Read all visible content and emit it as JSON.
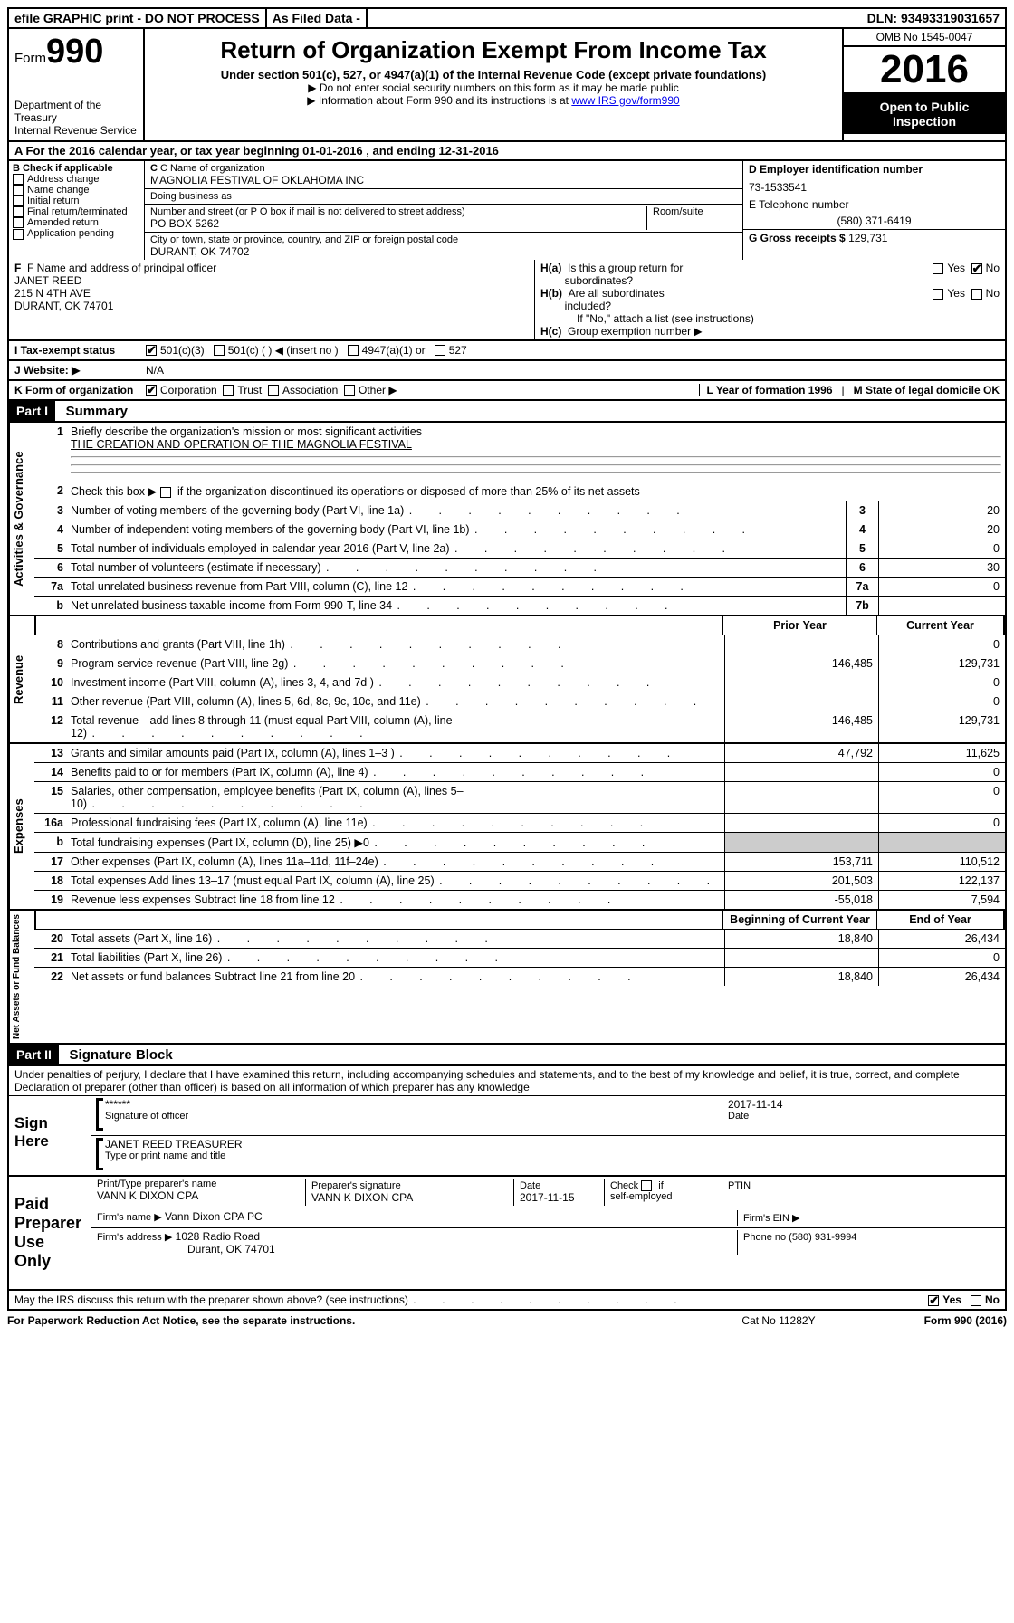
{
  "topbar": {
    "efile": "efile GRAPHIC print - DO NOT PROCESS",
    "asfiled": "As Filed Data -",
    "dln_label": "DLN:",
    "dln": "93493319031657"
  },
  "header": {
    "form_word": "Form",
    "form_num": "990",
    "dept1": "Department of the Treasury",
    "dept2": "Internal Revenue Service",
    "title": "Return of Organization Exempt From Income Tax",
    "subtitle": "Under section 501(c), 527, or 4947(a)(1) of the Internal Revenue Code (except private foundations)",
    "arrow1": "▶ Do not enter social security numbers on this form as it may be made public",
    "arrow2_pre": "▶ Information about Form 990 and its instructions is at ",
    "arrow2_link": "www IRS gov/form990",
    "omb": "OMB No 1545-0047",
    "year": "2016",
    "open1": "Open to Public",
    "open2": "Inspection"
  },
  "rowA": "A   For the 2016 calendar year, or tax year beginning 01-01-2016   , and ending 12-31-2016",
  "colB": {
    "title": "B Check if applicable",
    "items": [
      "Address change",
      "Name change",
      "Initial return",
      "Final return/terminated",
      "Amended return",
      "Application pending"
    ]
  },
  "colC": {
    "name_lbl": "C Name of organization",
    "name": "MAGNOLIA FESTIVAL OF OKLAHOMA INC",
    "dba_lbl": "Doing business as",
    "dba": "",
    "street_lbl": "Number and street (or P O  box if mail is not delivered to street address)",
    "room_lbl": "Room/suite",
    "street": "PO BOX 5262",
    "city_lbl": "City or town, state or province, country, and ZIP or foreign postal code",
    "city": "DURANT, OK  74702"
  },
  "colRight": {
    "d_lbl": "D Employer identification number",
    "d_val": "73-1533541",
    "e_lbl": "E Telephone number",
    "e_val": "(580) 371-6419",
    "g_lbl": "G Gross receipts $",
    "g_val": "129,731"
  },
  "boxF": {
    "lbl": "F  Name and address of principal officer",
    "l1": "JANET REED",
    "l2": "215 N 4TH AVE",
    "l3": "DURANT, OK  74701",
    "ha_lbl": "H(a)  Is this a group return for subordinates?",
    "hb_lbl": "H(b)  Are all subordinates included?",
    "h_note": "If \"No,\" attach a list  (see instructions)",
    "hc_lbl": "H(c)  Group exemption number ▶",
    "yes": "Yes",
    "no": "No"
  },
  "rowI": {
    "lbl": "I   Tax-exempt status",
    "o1": "501(c)(3)",
    "o2": "501(c) (   ) ◀ (insert no )",
    "o3": "4947(a)(1) or",
    "o4": "527"
  },
  "rowJ": {
    "lbl": "J   Website: ▶",
    "val": "N/A"
  },
  "rowK": {
    "lbl": "K Form of organization",
    "o1": "Corporation",
    "o2": "Trust",
    "o3": "Association",
    "o4": "Other ▶",
    "l_lbl": "L Year of formation  1996",
    "m_lbl": "M State of legal domicile  OK"
  },
  "part1": {
    "hdr": "Part I",
    "title": "Summary",
    "q1_lbl": "1",
    "q1": "Briefly describe the organization's mission or most significant activities",
    "q1_val": "THE CREATION AND OPERATION OF THE MAGNOLIA FESTIVAL",
    "q2": "Check this box ▶       if the organization discontinued its operations or disposed of more than 25% of its net assets",
    "vlabels": {
      "gov": "Activities & Governance",
      "rev": "Revenue",
      "exp": "Expenses",
      "net": "Net Assets or Fund Balances"
    },
    "gov_rows": [
      {
        "n": "3",
        "d": "Number of voting members of the governing body (Part VI, line 1a)",
        "b": "3",
        "v": "20"
      },
      {
        "n": "4",
        "d": "Number of independent voting members of the governing body (Part VI, line 1b)",
        "b": "4",
        "v": "20"
      },
      {
        "n": "5",
        "d": "Total number of individuals employed in calendar year 2016 (Part V, line 2a)",
        "b": "5",
        "v": "0"
      },
      {
        "n": "6",
        "d": "Total number of volunteers (estimate if necessary)",
        "b": "6",
        "v": "30"
      },
      {
        "n": "7a",
        "d": "Total unrelated business revenue from Part VIII, column (C), line 12",
        "b": "7a",
        "v": "0"
      },
      {
        "n": "b",
        "d": "Net unrelated business taxable income from Form 990-T, line 34",
        "b": "7b",
        "v": ""
      }
    ],
    "col_hdrs": {
      "prior": "Prior Year",
      "curr": "Current Year",
      "beg": "Beginning of Current Year",
      "end": "End of Year"
    },
    "rev_rows": [
      {
        "n": "8",
        "d": "Contributions and grants (Part VIII, line 1h)",
        "p": "",
        "c": "0"
      },
      {
        "n": "9",
        "d": "Program service revenue (Part VIII, line 2g)",
        "p": "146,485",
        "c": "129,731"
      },
      {
        "n": "10",
        "d": "Investment income (Part VIII, column (A), lines 3, 4, and 7d )",
        "p": "",
        "c": "0"
      },
      {
        "n": "11",
        "d": "Other revenue (Part VIII, column (A), lines 5, 6d, 8c, 9c, 10c, and 11e)",
        "p": "",
        "c": "0"
      },
      {
        "n": "12",
        "d": "Total revenue—add lines 8 through 11 (must equal Part VIII, column (A), line 12)",
        "p": "146,485",
        "c": "129,731"
      }
    ],
    "exp_rows": [
      {
        "n": "13",
        "d": "Grants and similar amounts paid (Part IX, column (A), lines 1–3 )",
        "p": "47,792",
        "c": "11,625"
      },
      {
        "n": "14",
        "d": "Benefits paid to or for members (Part IX, column (A), line 4)",
        "p": "",
        "c": "0"
      },
      {
        "n": "15",
        "d": "Salaries, other compensation, employee benefits (Part IX, column (A), lines 5–10)",
        "p": "",
        "c": "0"
      },
      {
        "n": "16a",
        "d": "Professional fundraising fees (Part IX, column (A), line 11e)",
        "p": "",
        "c": "0"
      },
      {
        "n": "b",
        "d": "Total fundraising expenses (Part IX, column (D), line 25) ▶0",
        "p": "shade",
        "c": "shade"
      },
      {
        "n": "17",
        "d": "Other expenses (Part IX, column (A), lines 11a–11d, 11f–24e)",
        "p": "153,711",
        "c": "110,512"
      },
      {
        "n": "18",
        "d": "Total expenses  Add lines 13–17 (must equal Part IX, column (A), line 25)",
        "p": "201,503",
        "c": "122,137"
      },
      {
        "n": "19",
        "d": "Revenue less expenses  Subtract line 18 from line 12",
        "p": "-55,018",
        "c": "7,594"
      }
    ],
    "net_rows": [
      {
        "n": "20",
        "d": "Total assets (Part X, line 16)",
        "p": "18,840",
        "c": "26,434"
      },
      {
        "n": "21",
        "d": "Total liabilities (Part X, line 26)",
        "p": "",
        "c": "0"
      },
      {
        "n": "22",
        "d": "Net assets or fund balances  Subtract line 21 from line 20",
        "p": "18,840",
        "c": "26,434"
      }
    ]
  },
  "part2": {
    "hdr": "Part II",
    "title": "Signature Block",
    "perjury": "Under penalties of perjury, I declare that I have examined this return, including accompanying schedules and statements, and to the best of my knowledge and belief, it is true, correct, and complete  Declaration of preparer (other than officer) is based on all information of which preparer has any knowledge",
    "sign_here": "Sign Here",
    "stars": "******",
    "sig_lbl": "Signature of officer",
    "date_lbl": "Date",
    "date_val": "2017-11-14",
    "name_val": "JANET REED  TREASURER",
    "name_lbl": "Type or print name and title",
    "paid": "Paid Preparer Use Only",
    "prep_name_lbl": "Print/Type preparer's name",
    "prep_name": "VANN K DIXON CPA",
    "prep_sig_lbl": "Preparer's signature",
    "prep_sig": "VANN K DIXON CPA",
    "prep_date_lbl": "Date",
    "prep_date": "2017-11-15",
    "check_lbl": "Check        if self-employed",
    "ptin_lbl": "PTIN",
    "firm_name_lbl": "Firm's name    ▶",
    "firm_name": "Vann Dixon CPA PC",
    "firm_ein_lbl": "Firm's EIN ▶",
    "firm_addr_lbl": "Firm's address ▶",
    "firm_addr1": "1028 Radio Road",
    "firm_addr2": "Durant, OK  74701",
    "phone_lbl": "Phone no  (580) 931-9994",
    "discuss": "May the IRS discuss this return with the preparer shown above? (see instructions)",
    "yes": "Yes",
    "no": "No"
  },
  "footer": {
    "l": "For Paperwork Reduction Act Notice, see the separate instructions.",
    "m": "Cat  No  11282Y",
    "r": "Form 990 (2016)"
  }
}
